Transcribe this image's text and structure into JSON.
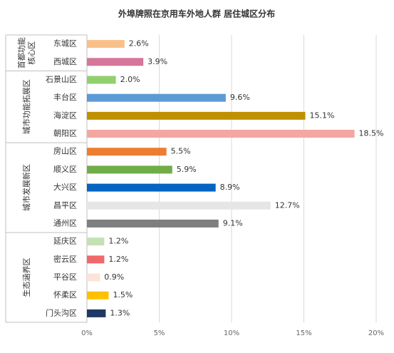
{
  "chart_data": {
    "type": "bar",
    "title": "外埠牌照在京用车外地人群  居住城区分布",
    "categories": [
      "东城区",
      "西城区",
      "石景山区",
      "丰台区",
      "海淀区",
      "朝阳区",
      "房山区",
      "顺义区",
      "大兴区",
      "昌平区",
      "通州区",
      "延庆区",
      "密云区",
      "平谷区",
      "怀柔区",
      "门头沟区"
    ],
    "values": [
      2.6,
      3.9,
      2.0,
      9.6,
      15.1,
      18.5,
      5.5,
      5.9,
      8.9,
      12.7,
      9.1,
      1.2,
      1.2,
      0.9,
      1.5,
      1.3
    ],
    "value_labels": [
      "2.6%",
      "3.9%",
      "2.0%",
      "9.6%",
      "15.1%",
      "18.5%",
      "5.5%",
      "5.9%",
      "8.9%",
      "12.7%",
      "9.1%",
      "1.2%",
      "1.2%",
      "0.9%",
      "1.5%",
      "1.3%"
    ],
    "colors": [
      "#f9c08a",
      "#d5769a",
      "#92d06e",
      "#5b9bd5",
      "#bf9000",
      "#f4a6a0",
      "#ed7d31",
      "#70ad47",
      "#0563c1",
      "#e7e6e6",
      "#7f7f7f",
      "#c5e0b4",
      "#f0686b",
      "#fbe5d6",
      "#ffc000",
      "#203864"
    ],
    "groups": [
      {
        "label": [
          "首都功能",
          "核心区"
        ],
        "span": 2
      },
      {
        "label": [
          "城市功能拓展区"
        ],
        "span": 4
      },
      {
        "label": [
          "城市发展新区"
        ],
        "span": 5
      },
      {
        "label": [
          "生态涵养区"
        ],
        "span": 5
      }
    ],
    "xlim": [
      0,
      20
    ],
    "xticks": [
      {
        "value": 0,
        "label": "0%"
      },
      {
        "value": 5,
        "label": "5%"
      },
      {
        "value": 10,
        "label": "10%"
      },
      {
        "value": 15,
        "label": "15%"
      },
      {
        "value": 20,
        "label": "20%"
      }
    ],
    "grid": true
  }
}
